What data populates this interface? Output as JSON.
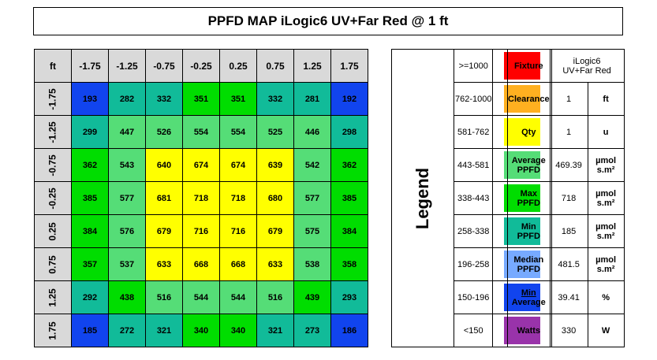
{
  "title": "PPFD MAP iLogic6 UV+Far Red @ 1 ft",
  "chart_data": {
    "type": "heatmap",
    "corner_label": "ft",
    "x_labels": [
      "-1.75",
      "-1.25",
      "-0.75",
      "-0.25",
      "0.25",
      "0.75",
      "1.25",
      "1.75"
    ],
    "y_labels": [
      "-1.75",
      "-1.25",
      "-0.75",
      "-0.25",
      "0.25",
      "0.75",
      "1.25",
      "1.75"
    ],
    "values": [
      [
        193,
        282,
        332,
        351,
        351,
        332,
        281,
        192
      ],
      [
        299,
        447,
        526,
        554,
        554,
        525,
        446,
        298
      ],
      [
        362,
        543,
        640,
        674,
        674,
        639,
        542,
        362
      ],
      [
        385,
        577,
        681,
        718,
        718,
        680,
        577,
        385
      ],
      [
        384,
        576,
        679,
        716,
        716,
        679,
        575,
        384
      ],
      [
        357,
        537,
        633,
        668,
        668,
        633,
        538,
        358
      ],
      [
        292,
        438,
        516,
        544,
        544,
        516,
        439,
        293
      ],
      [
        185,
        272,
        321,
        340,
        340,
        321,
        273,
        186
      ]
    ],
    "legend_title": "Legend",
    "legend": [
      {
        "label": ">=1000",
        "min": 1000,
        "color": "#ff0000"
      },
      {
        "label": "762-1000",
        "min": 762,
        "color": "#ffb020"
      },
      {
        "label": "581-762",
        "min": 581,
        "color": "#ffff00"
      },
      {
        "label": "443-581",
        "min": 443,
        "color": "#55dd77"
      },
      {
        "label": "338-443",
        "min": 338,
        "color": "#00dd00"
      },
      {
        "label": "258-338",
        "min": 258,
        "color": "#11bb99"
      },
      {
        "label": "196-258",
        "min": 196,
        "color": "#77aaff"
      },
      {
        "label": "150-196",
        "min": 150,
        "color": "#1144ee"
      },
      {
        "label": "<150",
        "min": 0,
        "color": "#9933aa"
      }
    ]
  },
  "stats": [
    {
      "label": "Fixture",
      "value": "iLogic6\nUV+Far Red",
      "unit": ""
    },
    {
      "label": "Clearance",
      "value": "1",
      "unit": "ft"
    },
    {
      "label": "Qty",
      "value": "1",
      "unit": "u"
    },
    {
      "label": "Average\nPPFD",
      "value": "469.39",
      "unit": "µmol\ns.m²"
    },
    {
      "label": "Max\nPPFD",
      "value": "718",
      "unit": "µmol\ns.m²"
    },
    {
      "label": "Min\nPPFD",
      "value": "185",
      "unit": "µmol\ns.m²"
    },
    {
      "label": "Median\nPPFD",
      "value": "481.5",
      "unit": "µmol\ns.m²"
    },
    {
      "label": "Min\nAverage",
      "value": "39.41",
      "unit": "%"
    },
    {
      "label": "Watts",
      "value": "330",
      "unit": "W"
    }
  ]
}
